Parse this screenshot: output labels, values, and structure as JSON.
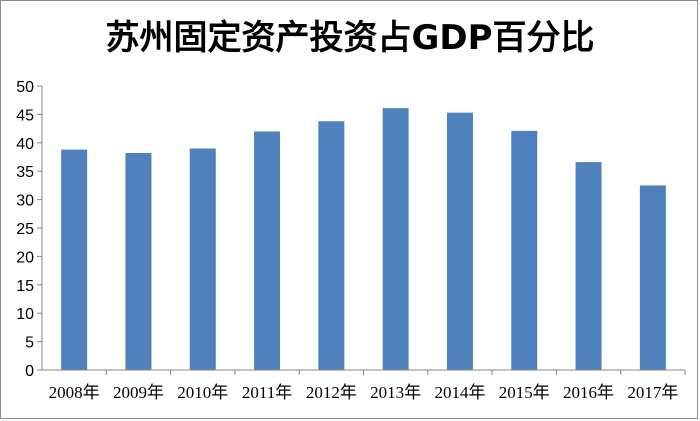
{
  "chart_data": {
    "type": "bar",
    "title": "苏州固定资产投资占GDP百分比",
    "xlabel": "",
    "ylabel": "",
    "categories": [
      "2008年",
      "2009年",
      "2010年",
      "2011年",
      "2012年",
      "2013年",
      "2014年",
      "2015年",
      "2016年",
      "2017年"
    ],
    "values": [
      38.8,
      38.2,
      39.0,
      42.0,
      43.8,
      46.1,
      45.3,
      42.1,
      36.6,
      32.5
    ],
    "ylim": [
      0,
      50
    ],
    "yticks": [
      "0",
      "5",
      "10",
      "15",
      "20",
      "25",
      "30",
      "35",
      "40",
      "45",
      "50"
    ],
    "grid": false,
    "legend": "none",
    "bar_color": "#4f81bd"
  }
}
